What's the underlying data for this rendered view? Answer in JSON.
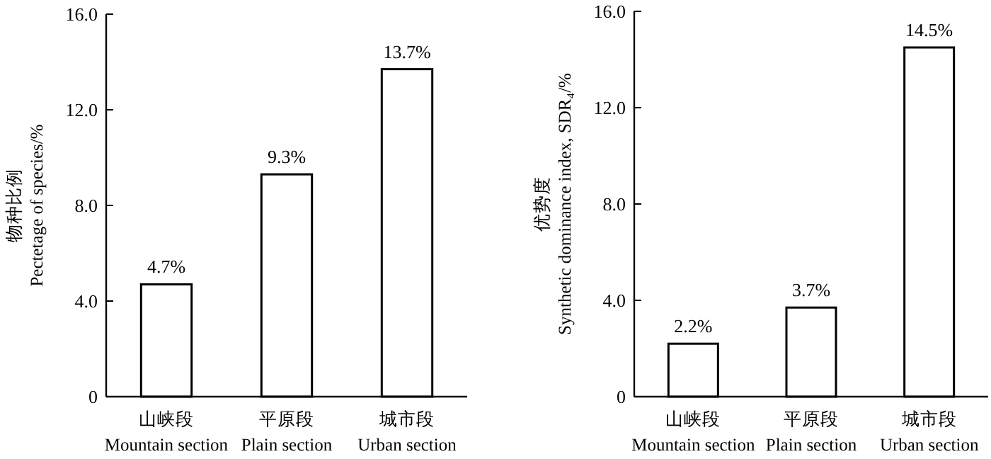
{
  "chart_data": [
    {
      "type": "bar",
      "categories": [
        "山峡段\nMountain section",
        "平原段\nPlain section",
        "城市段\nUrban section"
      ],
      "ylabel": "物种比例\nPectetage of species/%",
      "values": [
        4.7,
        9.3,
        13.7
      ],
      "value_labels": [
        "4.7%",
        "9.3%",
        "13.7%"
      ],
      "color": "#ffffff",
      "ylim": [
        0,
        16
      ],
      "yticks": [
        0,
        {
          "value": 4,
          "label": "4.0"
        },
        {
          "value": 8,
          "label": "8.0"
        },
        {
          "value": 12,
          "label": "12.0"
        },
        {
          "value": 16,
          "label": "16.0"
        }
      ]
    },
    {
      "type": "bar",
      "categories": [
        "山峡段\nMountain section",
        "平原段\nPlain section",
        "城市段\nUrban section"
      ],
      "ylabel": "优势度\nSynthetic dominance index, SDR₄/%",
      "values": [
        2.2,
        3.7,
        14.5
      ],
      "value_labels": [
        "2.2%",
        "3.7%",
        "14.5%"
      ],
      "color": "#ffffff",
      "ylim": [
        0,
        16
      ],
      "yticks": [
        0,
        {
          "value": 4,
          "label": "4.0"
        },
        {
          "value": 8,
          "label": "8.0"
        },
        {
          "value": 12,
          "label": "12.0"
        },
        {
          "value": 16,
          "label": "16.0"
        }
      ]
    }
  ]
}
